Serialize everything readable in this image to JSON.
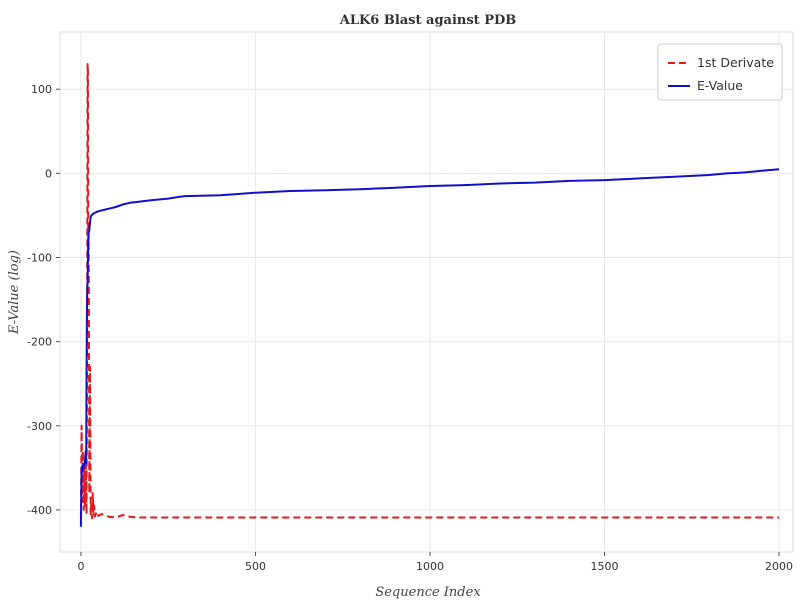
{
  "chart_data": {
    "type": "line",
    "title": "ALK6 Blast against PDB",
    "xlabel": "Sequence Index",
    "ylabel": "E-Value (log)",
    "xlim": [
      -60,
      2040
    ],
    "ylim": [
      -450,
      168
    ],
    "xticks": [
      0,
      500,
      1000,
      1500,
      2000
    ],
    "xtick_labels": [
      "0",
      "500",
      "1000",
      "1500",
      "2000"
    ],
    "yticks": [
      -400,
      -300,
      -200,
      -100,
      0,
      100
    ],
    "ytick_labels": [
      "-400",
      "-300",
      "-200",
      "-100",
      "0",
      "100"
    ],
    "grid": true,
    "legend_position": "top-right",
    "series": [
      {
        "name": "1st Derivate",
        "color": "#e31a1c",
        "style": "dashed",
        "x": [
          0,
          2,
          4,
          6,
          8,
          10,
          12,
          14,
          16,
          18,
          19,
          20,
          21,
          22,
          23,
          24,
          26,
          28,
          30,
          32,
          34,
          36,
          38,
          40,
          45,
          50,
          60,
          80,
          100,
          120,
          140,
          160,
          200,
          300,
          500,
          1000,
          1500,
          2000
        ],
        "y": [
          -410,
          -300,
          -390,
          -330,
          -400,
          -350,
          -395,
          -340,
          -405,
          -150,
          130,
          128,
          -100,
          -60,
          -200,
          -380,
          -230,
          -405,
          -390,
          -410,
          -380,
          -405,
          -395,
          -408,
          -402,
          -407,
          -405,
          -408,
          -409,
          -406,
          -408,
          -409,
          -409,
          -409,
          -409,
          -409,
          -409,
          -409
        ]
      },
      {
        "name": "E-Value",
        "color": "#1010cc",
        "style": "solid",
        "x": [
          0,
          2,
          4,
          6,
          8,
          10,
          12,
          14,
          15,
          16,
          17,
          18,
          19,
          20,
          21,
          22,
          24,
          26,
          28,
          30,
          35,
          40,
          50,
          60,
          70,
          80,
          100,
          120,
          140,
          160,
          200,
          250,
          280,
          300,
          400,
          500,
          600,
          700,
          800,
          900,
          1000,
          1100,
          1200,
          1300,
          1400,
          1500,
          1600,
          1700,
          1800,
          1850,
          1900,
          1950,
          2000
        ],
        "y": [
          -420,
          -350,
          -355,
          -345,
          -350,
          -345,
          -340,
          -330,
          -345,
          -250,
          -170,
          -140,
          -130,
          -105,
          -80,
          -70,
          -68,
          -58,
          -52,
          -50,
          -48,
          -47,
          -45,
          -44,
          -43,
          -42,
          -40,
          -37,
          -35,
          -34,
          -32,
          -30,
          -28,
          -27,
          -26,
          -23,
          -21,
          -20,
          -19,
          -17,
          -15,
          -14,
          -12,
          -11,
          -9,
          -8,
          -6,
          -4,
          -2,
          0,
          1,
          3,
          5
        ]
      }
    ]
  }
}
